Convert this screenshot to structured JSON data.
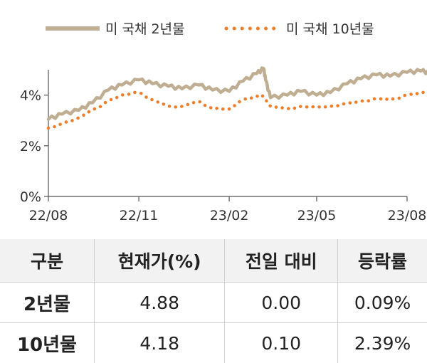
{
  "chart_data": {
    "type": "line",
    "x_ticks": [
      "22/08",
      "22/11",
      "23/02",
      "23/05",
      "23/08"
    ],
    "y_ticks": [
      "0%",
      "2%",
      "4%"
    ],
    "ylim": [
      0,
      5
    ],
    "series": [
      {
        "name": "미 국채 2년물",
        "color": "#bfae91",
        "style": "solid",
        "x": [
          "2022-08-01",
          "2022-08-15",
          "2022-09-01",
          "2022-09-15",
          "2022-10-01",
          "2022-10-15",
          "2022-11-01",
          "2022-11-15",
          "2022-12-01",
          "2022-12-15",
          "2023-01-01",
          "2023-01-15",
          "2023-02-01",
          "2023-02-15",
          "2023-03-01",
          "2023-03-08",
          "2023-03-10",
          "2023-03-15",
          "2023-04-01",
          "2023-04-15",
          "2023-05-01",
          "2023-05-15",
          "2023-06-01",
          "2023-06-15",
          "2023-07-01",
          "2023-07-15",
          "2023-08-01",
          "2023-08-15",
          "2023-08-25"
        ],
        "values": [
          3.05,
          3.25,
          3.4,
          3.7,
          4.2,
          4.4,
          4.6,
          4.45,
          4.35,
          4.25,
          4.4,
          4.2,
          4.15,
          4.55,
          4.85,
          5.05,
          4.6,
          3.9,
          4.0,
          4.15,
          4.0,
          4.1,
          4.45,
          4.65,
          4.8,
          4.75,
          4.9,
          4.95,
          4.88
        ]
      },
      {
        "name": "미 국채 10년물",
        "color": "#f07d28",
        "style": "dotted",
        "x": [
          "2022-08-01",
          "2022-08-15",
          "2022-09-01",
          "2022-09-15",
          "2022-10-01",
          "2022-10-15",
          "2022-11-01",
          "2022-11-15",
          "2022-12-01",
          "2022-12-15",
          "2023-01-01",
          "2023-01-15",
          "2023-02-01",
          "2023-02-15",
          "2023-03-01",
          "2023-03-08",
          "2023-03-15",
          "2023-04-01",
          "2023-04-15",
          "2023-05-01",
          "2023-05-15",
          "2023-06-01",
          "2023-06-15",
          "2023-07-01",
          "2023-07-15",
          "2023-08-01",
          "2023-08-15",
          "2023-08-25"
        ],
        "values": [
          2.7,
          2.85,
          3.1,
          3.4,
          3.75,
          4.0,
          4.1,
          3.8,
          3.55,
          3.55,
          3.75,
          3.45,
          3.45,
          3.8,
          3.95,
          3.95,
          3.55,
          3.45,
          3.55,
          3.5,
          3.55,
          3.65,
          3.75,
          3.85,
          3.8,
          4.0,
          4.05,
          4.18
        ]
      }
    ]
  },
  "table": {
    "headers": [
      "구분",
      "현재가(%)",
      "전일 대비",
      "등락률"
    ],
    "rows": [
      {
        "label": "2년물",
        "price": "4.88",
        "change": "0.00",
        "rate": "0.09%"
      },
      {
        "label": "10년물",
        "price": "4.18",
        "change": "0.10",
        "rate": "2.39%"
      }
    ]
  }
}
